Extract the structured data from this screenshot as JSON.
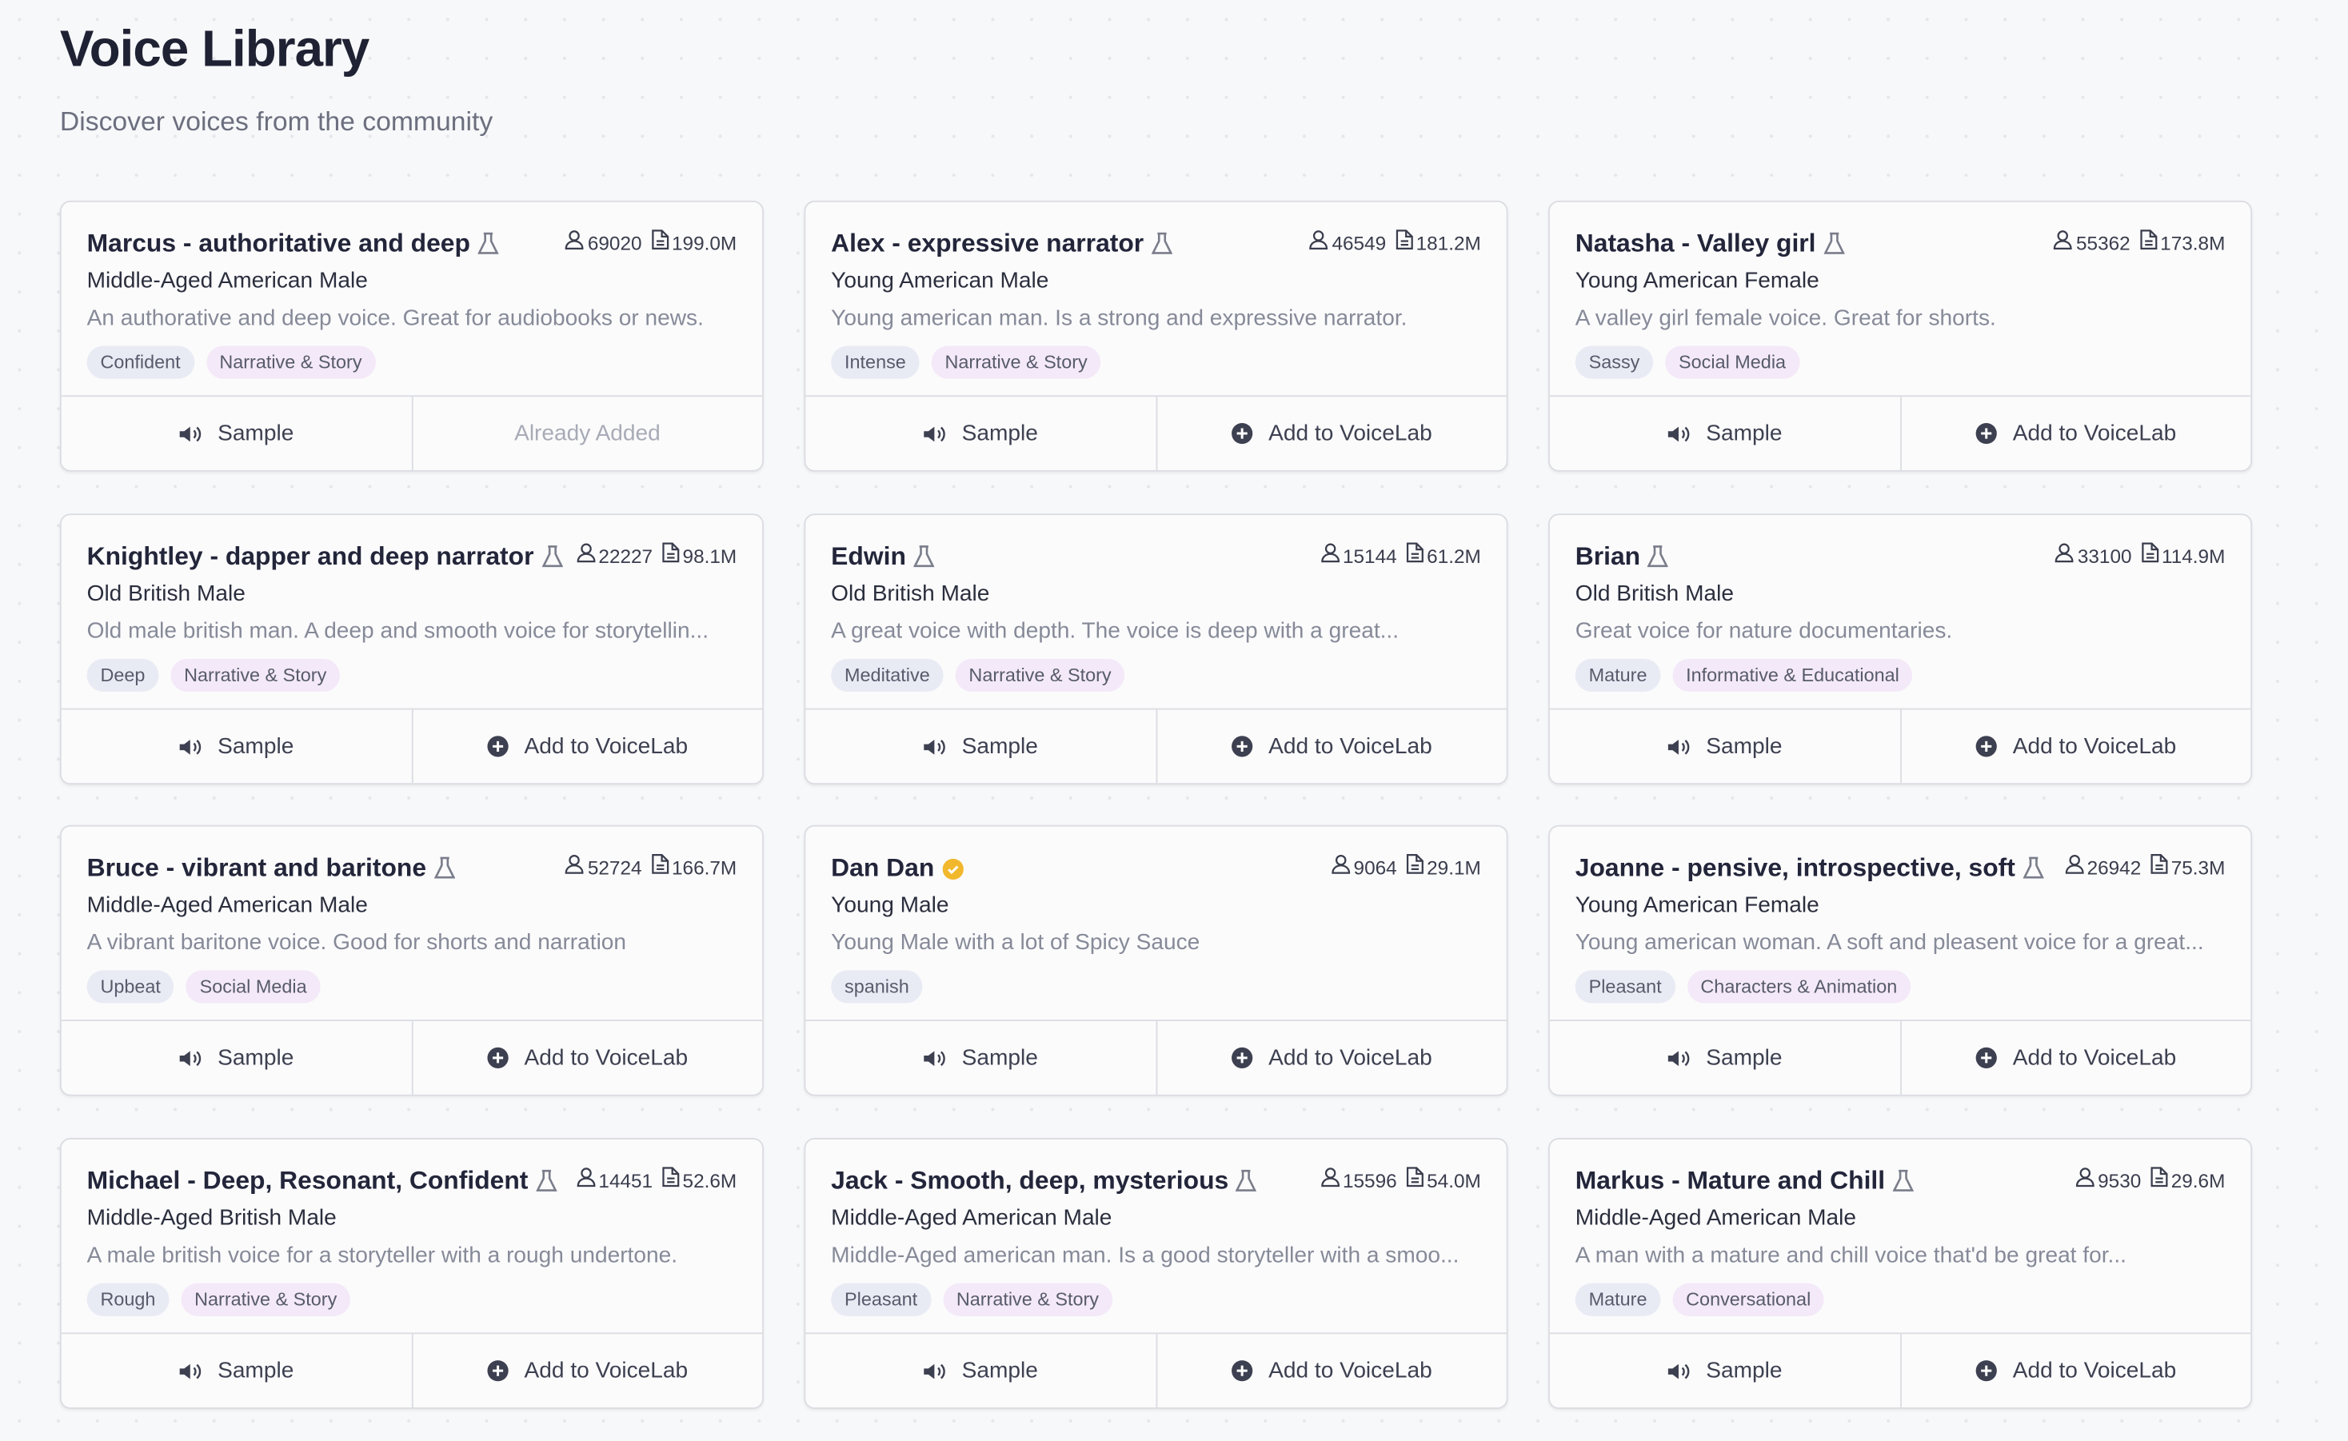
{
  "header": {
    "title": "Voice Library",
    "subtitle": "Discover voices from the community"
  },
  "cards": [
    {
      "name": "Marcus - authoritative and deep",
      "verified": false,
      "users": "69020",
      "chars": "199.0M",
      "meta": "Middle-Aged American Male",
      "description": "An authorative and deep voice. Great for audiobooks or news.",
      "tags": [
        "Confident",
        "Narrative & Story"
      ],
      "sample": "Sample",
      "action": "Already Added",
      "added": true
    },
    {
      "name": "Alex - expressive narrator",
      "verified": false,
      "users": "46549",
      "chars": "181.2M",
      "meta": "Young American Male",
      "description": "Young american man. Is a strong and expressive narrator.",
      "tags": [
        "Intense",
        "Narrative & Story"
      ],
      "sample": "Sample",
      "action": "Add to VoiceLab",
      "added": false
    },
    {
      "name": "Natasha - Valley girl",
      "verified": false,
      "users": "55362",
      "chars": "173.8M",
      "meta": "Young American Female",
      "description": "A valley girl female voice. Great for shorts.",
      "tags": [
        "Sassy",
        "Social Media"
      ],
      "sample": "Sample",
      "action": "Add to VoiceLab",
      "added": false
    },
    {
      "name": "Knightley - dapper and deep narrator",
      "verified": false,
      "users": "22227",
      "chars": "98.1M",
      "meta": "Old British Male",
      "description": "Old male british man. A deep and smooth voice for storytellin...",
      "tags": [
        "Deep",
        "Narrative & Story"
      ],
      "sample": "Sample",
      "action": "Add to VoiceLab",
      "added": false
    },
    {
      "name": "Edwin",
      "verified": false,
      "users": "15144",
      "chars": "61.2M",
      "meta": "Old British Male",
      "description": "A great voice with depth. The voice is deep with a great...",
      "tags": [
        "Meditative",
        "Narrative & Story"
      ],
      "sample": "Sample",
      "action": "Add to VoiceLab",
      "added": false
    },
    {
      "name": "Brian",
      "verified": false,
      "users": "33100",
      "chars": "114.9M",
      "meta": "Old British Male",
      "description": "Great voice for nature documentaries.",
      "tags": [
        "Mature",
        "Informative & Educational"
      ],
      "sample": "Sample",
      "action": "Add to VoiceLab",
      "added": false
    },
    {
      "name": "Bruce - vibrant and baritone",
      "verified": false,
      "users": "52724",
      "chars": "166.7M",
      "meta": "Middle-Aged American Male",
      "description": "A vibrant baritone voice. Good for shorts and narration",
      "tags": [
        "Upbeat",
        "Social Media"
      ],
      "sample": "Sample",
      "action": "Add to VoiceLab",
      "added": false
    },
    {
      "name": "Dan Dan",
      "verified": true,
      "users": "9064",
      "chars": "29.1M",
      "meta": "Young Male",
      "description": "Young Male with a lot of Spicy Sauce",
      "tags": [
        "spanish"
      ],
      "sample": "Sample",
      "action": "Add to VoiceLab",
      "added": false
    },
    {
      "name": "Joanne - pensive, introspective, soft",
      "verified": false,
      "users": "26942",
      "chars": "75.3M",
      "meta": "Young American Female",
      "description": "Young american woman. A soft and pleasent voice for a great...",
      "tags": [
        "Pleasant",
        "Characters & Animation"
      ],
      "sample": "Sample",
      "action": "Add to VoiceLab",
      "added": false
    },
    {
      "name": "Michael - Deep, Resonant, Confident",
      "verified": false,
      "users": "14451",
      "chars": "52.6M",
      "meta": "Middle-Aged British Male",
      "description": "A male british voice for a storyteller with a rough undertone.",
      "tags": [
        "Rough",
        "Narrative & Story"
      ],
      "sample": "Sample",
      "action": "Add to VoiceLab",
      "added": false
    },
    {
      "name": "Jack - Smooth, deep, mysterious",
      "verified": false,
      "users": "15596",
      "chars": "54.0M",
      "meta": "Middle-Aged American Male",
      "description": "Middle-Aged american man. Is a good storyteller with a smoo...",
      "tags": [
        "Pleasant",
        "Narrative & Story"
      ],
      "sample": "Sample",
      "action": "Add to VoiceLab",
      "added": false
    },
    {
      "name": "Markus - Mature and Chill",
      "verified": false,
      "users": "9530",
      "chars": "29.6M",
      "meta": "Middle-Aged American Male",
      "description": "A man with a mature and chill voice that'd be great for...",
      "tags": [
        "Mature",
        "Conversational"
      ],
      "sample": "Sample",
      "action": "Add to VoiceLab",
      "added": false
    }
  ]
}
